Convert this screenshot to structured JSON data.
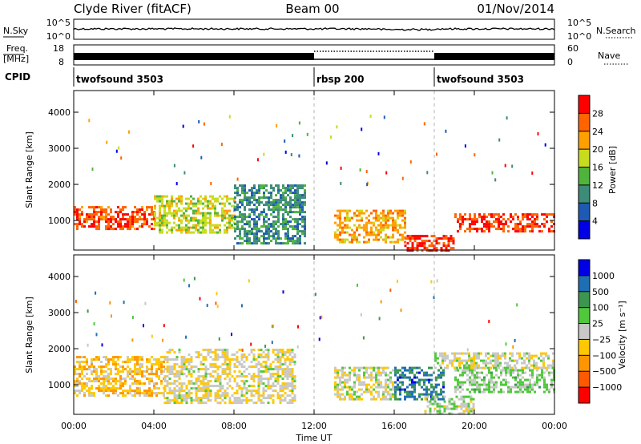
{
  "header": {
    "station": "Clyde River (fitACF)",
    "beam": "Beam 00",
    "date": "01/Nov/2014"
  },
  "noise_panel": {
    "left_label": "N.Sky",
    "left_ticks": [
      "10^5",
      "10^0"
    ],
    "right_ticks": [
      "10^5",
      "10^0"
    ],
    "right_label": "N.Search"
  },
  "freq_panel": {
    "label_line1": "Freq.",
    "label_line2": "[MHz]",
    "left_ticks": [
      "18",
      "8"
    ],
    "right_ticks": [
      "60",
      "0"
    ],
    "right_label": "Nave"
  },
  "cpid": {
    "label": "CPID",
    "segments": [
      {
        "name": "twofsound 3503",
        "start_h": 0
      },
      {
        "name": "rbsp 200",
        "start_h": 12
      },
      {
        "name": "twofsound 3503",
        "start_h": 18
      }
    ]
  },
  "chart_data": [
    {
      "type": "heatmap",
      "title": "",
      "xlabel": "Time UT",
      "ylabel": "Slant Range [km]",
      "xlim": [
        0,
        24
      ],
      "ylim": [
        180,
        4600
      ],
      "x_ticks": [
        "00:00",
        "04:00",
        "08:00",
        "12:00",
        "16:00",
        "20:00",
        "00:00"
      ],
      "y_ticks": [
        "1000",
        "2000",
        "3000",
        "4000"
      ],
      "colorbar": {
        "label": "Power [dB]",
        "ticks": [
          "4",
          "8",
          "12",
          "16",
          "20",
          "24",
          "28"
        ],
        "range": [
          0,
          32
        ],
        "colors": [
          "#0000e6",
          "#1e5ab4",
          "#3c8c78",
          "#50b43c",
          "#c8dc1e",
          "#ffa000",
          "#ff6400",
          "#ff0000"
        ]
      },
      "regions": [
        {
          "t": [
            0.0,
            4.0
          ],
          "r": [
            800,
            1400
          ],
          "value": 27
        },
        {
          "t": [
            4.0,
            8.0
          ],
          "r": [
            700,
            1700
          ],
          "value": 18
        },
        {
          "t": [
            8.0,
            11.5
          ],
          "r": [
            400,
            2000
          ],
          "value": 10
        },
        {
          "t": [
            13.0,
            16.5
          ],
          "r": [
            400,
            1300
          ],
          "value": 22
        },
        {
          "t": [
            16.5,
            19.0
          ],
          "r": [
            200,
            600
          ],
          "value": 29
        },
        {
          "t": [
            19.0,
            24.0
          ],
          "r": [
            700,
            1200
          ],
          "value": 28
        }
      ]
    },
    {
      "type": "heatmap",
      "title": "",
      "xlabel": "Time UT",
      "ylabel": "Slant Range [km]",
      "xlim": [
        0,
        24
      ],
      "ylim": [
        180,
        4600
      ],
      "x_ticks": [
        "00:00",
        "04:00",
        "08:00",
        "12:00",
        "16:00",
        "20:00",
        "00:00"
      ],
      "y_ticks": [
        "1000",
        "2000",
        "3000",
        "4000"
      ],
      "colorbar": {
        "label": "Velocity [m s⁻¹]",
        "ticks": [
          "1000",
          "500",
          "100",
          "25",
          "−25",
          "−100",
          "−500",
          "−1000"
        ],
        "range": [
          -1200,
          1200
        ],
        "colors": [
          "#ff0000",
          "#ff5a00",
          "#ff9600",
          "#ffc800",
          "#c8c8c8",
          "#50c83c",
          "#3c9650",
          "#1e6eb4",
          "#0000e6"
        ]
      },
      "regions": [
        {
          "t": [
            0.0,
            4.5
          ],
          "r": [
            700,
            1800
          ],
          "value": -300
        },
        {
          "t": [
            4.5,
            11.0
          ],
          "r": [
            500,
            2000
          ],
          "value": -80
        },
        {
          "t": [
            13.0,
            16.0
          ],
          "r": [
            600,
            1500
          ],
          "value": -40
        },
        {
          "t": [
            16.0,
            18.5
          ],
          "r": [
            600,
            1500
          ],
          "value": 700
        },
        {
          "t": [
            17.5,
            20.0
          ],
          "r": [
            200,
            700
          ],
          "value": 80
        },
        {
          "t": [
            19.0,
            24.0
          ],
          "r": [
            800,
            1500
          ],
          "value": 150
        },
        {
          "t": [
            18.0,
            24.0
          ],
          "r": [
            1500,
            1900
          ],
          "value": 0
        }
      ]
    }
  ]
}
